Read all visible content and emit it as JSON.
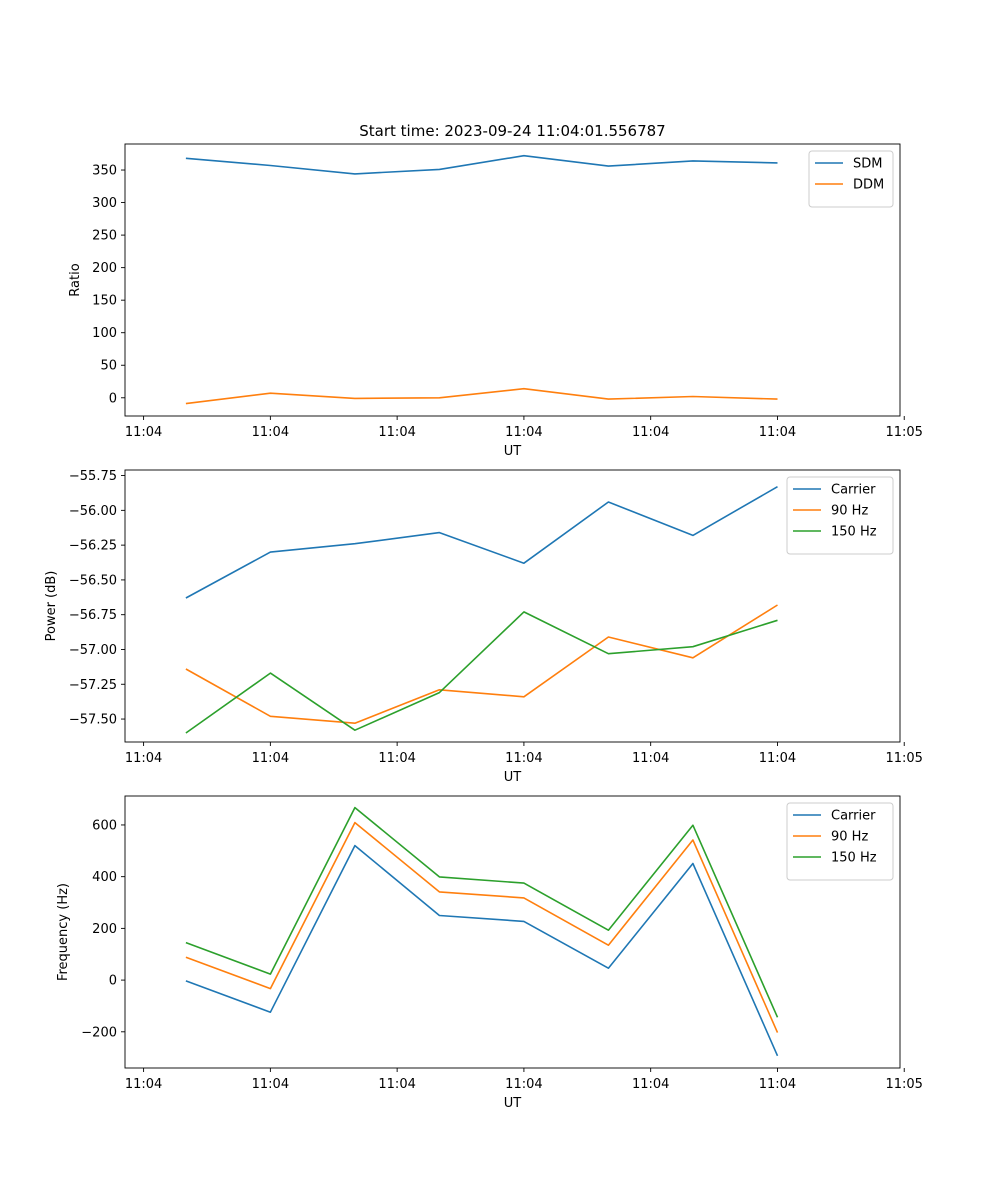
{
  "figure_title": "Start time: 2023-09-24 11:04:01.556787",
  "colors": {
    "blue": "#1f77b4",
    "orange": "#ff7f0e",
    "green": "#2ca02c"
  },
  "chart_data": [
    {
      "type": "line",
      "title": "Start time: 2023-09-24 11:04:01.556787",
      "xlabel": "UT",
      "ylabel": "Ratio",
      "x": [
        1,
        2,
        3,
        4,
        5,
        6,
        7,
        8
      ],
      "xlim": [
        0.28,
        9.45
      ],
      "xticks": [
        0.5,
        2.0,
        3.5,
        5.0,
        6.5,
        8.0,
        9.5
      ],
      "xtick_labels": [
        "11:04",
        "11:04",
        "11:04",
        "11:04",
        "11:04",
        "11:04",
        "11:05"
      ],
      "ylim": [
        -28,
        390
      ],
      "yticks": [
        0,
        50,
        100,
        150,
        200,
        250,
        300,
        350
      ],
      "ytick_labels": [
        "0",
        "50",
        "100",
        "150",
        "200",
        "250",
        "300",
        "350"
      ],
      "legend_position": "top-right",
      "series": [
        {
          "name": "SDM",
          "color": "#1f77b4",
          "values": [
            368,
            357,
            344,
            351,
            372,
            356,
            364,
            361
          ]
        },
        {
          "name": "DDM",
          "color": "#ff7f0e",
          "values": [
            -9,
            7,
            -1,
            0,
            14,
            -2,
            2,
            -2
          ]
        }
      ]
    },
    {
      "type": "line",
      "title": "",
      "xlabel": "UT",
      "ylabel": "Power (dB)",
      "x": [
        1,
        2,
        3,
        4,
        5,
        6,
        7,
        8
      ],
      "xlim": [
        0.28,
        9.45
      ],
      "xticks": [
        0.5,
        2.0,
        3.5,
        5.0,
        6.5,
        8.0,
        9.5
      ],
      "xtick_labels": [
        "11:04",
        "11:04",
        "11:04",
        "11:04",
        "11:04",
        "11:04",
        "11:05"
      ],
      "ylim": [
        -57.665,
        -55.71
      ],
      "yticks": [
        -57.5,
        -57.25,
        -57.0,
        -56.75,
        -56.5,
        -56.25,
        -56.0,
        -55.75
      ],
      "ytick_labels": [
        "−57.50",
        "−57.25",
        "−57.00",
        "−56.75",
        "−56.50",
        "−56.25",
        "−56.00",
        "−55.75"
      ],
      "legend_position": "top-right",
      "series": [
        {
          "name": "Carrier",
          "color": "#1f77b4",
          "values": [
            -56.63,
            -56.3,
            -56.24,
            -56.16,
            -56.38,
            -55.94,
            -56.18,
            -55.83
          ]
        },
        {
          "name": "90 Hz",
          "color": "#ff7f0e",
          "values": [
            -57.14,
            -57.48,
            -57.53,
            -57.29,
            -57.34,
            -56.91,
            -57.06,
            -56.68
          ]
        },
        {
          "name": "150 Hz",
          "color": "#2ca02c",
          "values": [
            -57.6,
            -57.17,
            -57.58,
            -57.31,
            -56.73,
            -57.03,
            -56.98,
            -56.79
          ]
        }
      ]
    },
    {
      "type": "line",
      "title": "",
      "xlabel": "UT",
      "ylabel": "Frequency (Hz)",
      "x": [
        1,
        2,
        3,
        4,
        5,
        6,
        7,
        8
      ],
      "xlim": [
        0.28,
        9.45
      ],
      "xticks": [
        0.5,
        2.0,
        3.5,
        5.0,
        6.5,
        8.0,
        9.5
      ],
      "xtick_labels": [
        "11:04",
        "11:04",
        "11:04",
        "11:04",
        "11:04",
        "11:04",
        "11:05"
      ],
      "ylim": [
        -340,
        712
      ],
      "yticks": [
        -200,
        0,
        200,
        400,
        600
      ],
      "ytick_labels": [
        "−200",
        "0",
        "200",
        "400",
        "600"
      ],
      "legend_position": "top-right",
      "series": [
        {
          "name": "Carrier",
          "color": "#1f77b4",
          "values": [
            -3,
            -124,
            520,
            250,
            227,
            46,
            451,
            -293
          ]
        },
        {
          "name": "90 Hz",
          "color": "#ff7f0e",
          "values": [
            88,
            -33,
            609,
            341,
            318,
            135,
            542,
            -203
          ]
        },
        {
          "name": "150 Hz",
          "color": "#2ca02c",
          "values": [
            145,
            23,
            667,
            399,
            375,
            193,
            599,
            -144
          ]
        }
      ]
    }
  ]
}
